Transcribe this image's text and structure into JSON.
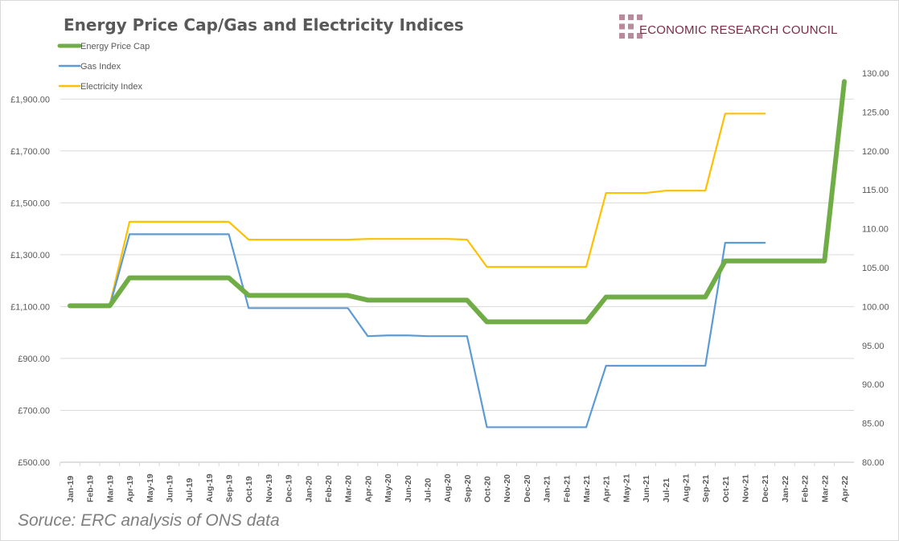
{
  "chart_data": {
    "type": "line",
    "title": "Energy Price Cap/Gas and Electricity Indices",
    "categories": [
      "Jan-19",
      "Feb-19",
      "Mar-19",
      "Apr-19",
      "May-19",
      "Jun-19",
      "Jul-19",
      "Aug-19",
      "Sep-19",
      "Oct-19",
      "Nov-19",
      "Dec-19",
      "Jan-20",
      "Feb-20",
      "Mar-20",
      "Apr-20",
      "May-20",
      "Jun-20",
      "Jul-20",
      "Aug-20",
      "Sep-20",
      "Oct-20",
      "Nov-20",
      "Dec-20",
      "Jan-21",
      "Feb-21",
      "Mar-21",
      "Apr-21",
      "May-21",
      "Jun-21",
      "Jul-21",
      "Aug-21",
      "Sep-21",
      "Oct-21",
      "Nov-21",
      "Dec-21",
      "Jan-22",
      "Feb-22",
      "Mar-22",
      "Apr-22"
    ],
    "series": [
      {
        "name": "Energy Price Cap",
        "axis": "left",
        "color": "#70ad47",
        "values": [
          1103,
          1103,
          1103,
          1211,
          1211,
          1211,
          1211,
          1211,
          1211,
          1143,
          1143,
          1143,
          1143,
          1143,
          1143,
          1125,
          1125,
          1125,
          1125,
          1125,
          1125,
          1041,
          1041,
          1041,
          1041,
          1041,
          1041,
          1137,
          1137,
          1137,
          1137,
          1137,
          1137,
          1276,
          1276,
          1276,
          1276,
          1276,
          1276,
          1968
        ]
      },
      {
        "name": "Gas Index",
        "axis": "right",
        "color": "#5b9bd5",
        "values": [
          100.0,
          100.0,
          100.0,
          109.3,
          109.3,
          109.3,
          109.3,
          109.3,
          109.3,
          99.8,
          99.8,
          99.8,
          99.8,
          99.8,
          99.8,
          96.2,
          96.3,
          96.3,
          96.2,
          96.2,
          96.2,
          84.5,
          84.5,
          84.5,
          84.5,
          84.5,
          84.5,
          92.4,
          92.4,
          92.4,
          92.4,
          92.4,
          92.4,
          108.2,
          108.2,
          108.2,
          null,
          null,
          null,
          null
        ]
      },
      {
        "name": "Electricity Index",
        "axis": "right",
        "color": "#ffc000",
        "values": [
          100.0,
          100.1,
          100.2,
          110.9,
          110.9,
          110.9,
          110.9,
          110.9,
          110.9,
          108.6,
          108.6,
          108.6,
          108.6,
          108.6,
          108.6,
          108.7,
          108.7,
          108.7,
          108.7,
          108.7,
          108.6,
          105.1,
          105.1,
          105.1,
          105.1,
          105.1,
          105.1,
          114.6,
          114.6,
          114.6,
          114.9,
          114.9,
          114.9,
          124.8,
          124.8,
          124.8,
          null,
          null,
          null,
          null
        ]
      }
    ],
    "y_left": {
      "ylim": [
        500,
        2000
      ],
      "ticks": [
        "£500.00",
        "£700.00",
        "£900.00",
        "£1,100.00",
        "£1,300.00",
        "£1,500.00",
        "£1,700.00",
        "£1,900.00"
      ],
      "tick_values": [
        500,
        700,
        900,
        1100,
        1300,
        1500,
        1700,
        1900
      ]
    },
    "y_right": {
      "ylim": [
        80,
        130
      ],
      "ticks": [
        "80.00",
        "85.00",
        "90.00",
        "95.00",
        "100.00",
        "105.00",
        "110.00",
        "115.00",
        "120.00",
        "125.00",
        "130.00"
      ],
      "tick_values": [
        80,
        85,
        90,
        95,
        100,
        105,
        110,
        115,
        120,
        125,
        130
      ]
    },
    "grid": true,
    "legend": "top-left"
  },
  "source": "Soruce: ERC analysis of ONS data",
  "logo_text": "ECONOMIC RESEARCH COUNCIL"
}
